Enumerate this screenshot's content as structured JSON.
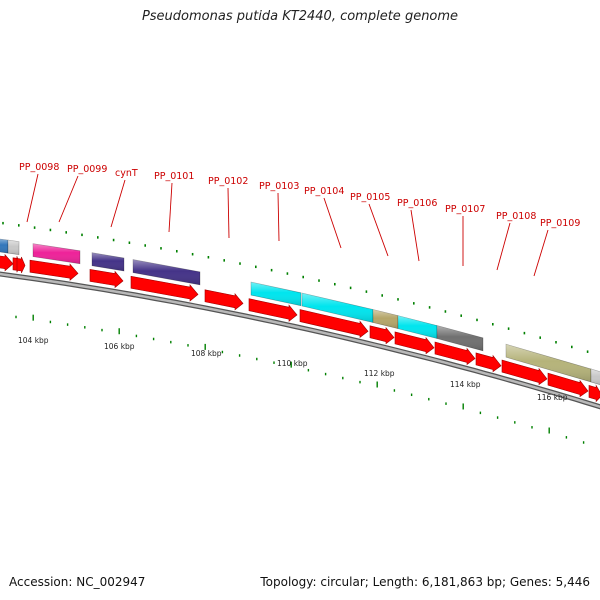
{
  "title": "Pseudomonas putida KT2440, complete genome",
  "accession": "Accession: NC_002947",
  "summary": "Topology: circular; Length: 6,181,863 bp; Genes: 5,446",
  "colors": {
    "cds_arrow": "#ff0000",
    "tick": "#008000",
    "backbone": "#999999",
    "gene_label": "#cc0000"
  },
  "gene_labels": [
    "PP_0098",
    "PP_0099",
    "cynT",
    "PP_0101",
    "PP_0102",
    "PP_0103",
    "PP_0104",
    "PP_0105",
    "PP_0106",
    "PP_0107",
    "PP_0108",
    "PP_0109"
  ],
  "scale_labels": [
    "104 kbp",
    "106 kbp",
    "108 kbp",
    "110 kbp",
    "112 kbp",
    "114 kbp",
    "116 kbp"
  ],
  "feature_colors": [
    "#3377bb",
    "#c8c8c8",
    "#ee2299",
    "#443388",
    "#443388",
    "#00e5ee",
    "#00e5ee",
    "#b5a66a",
    "#00e5ee",
    "#707070",
    "#b5b37a",
    "#c8c8c8"
  ]
}
